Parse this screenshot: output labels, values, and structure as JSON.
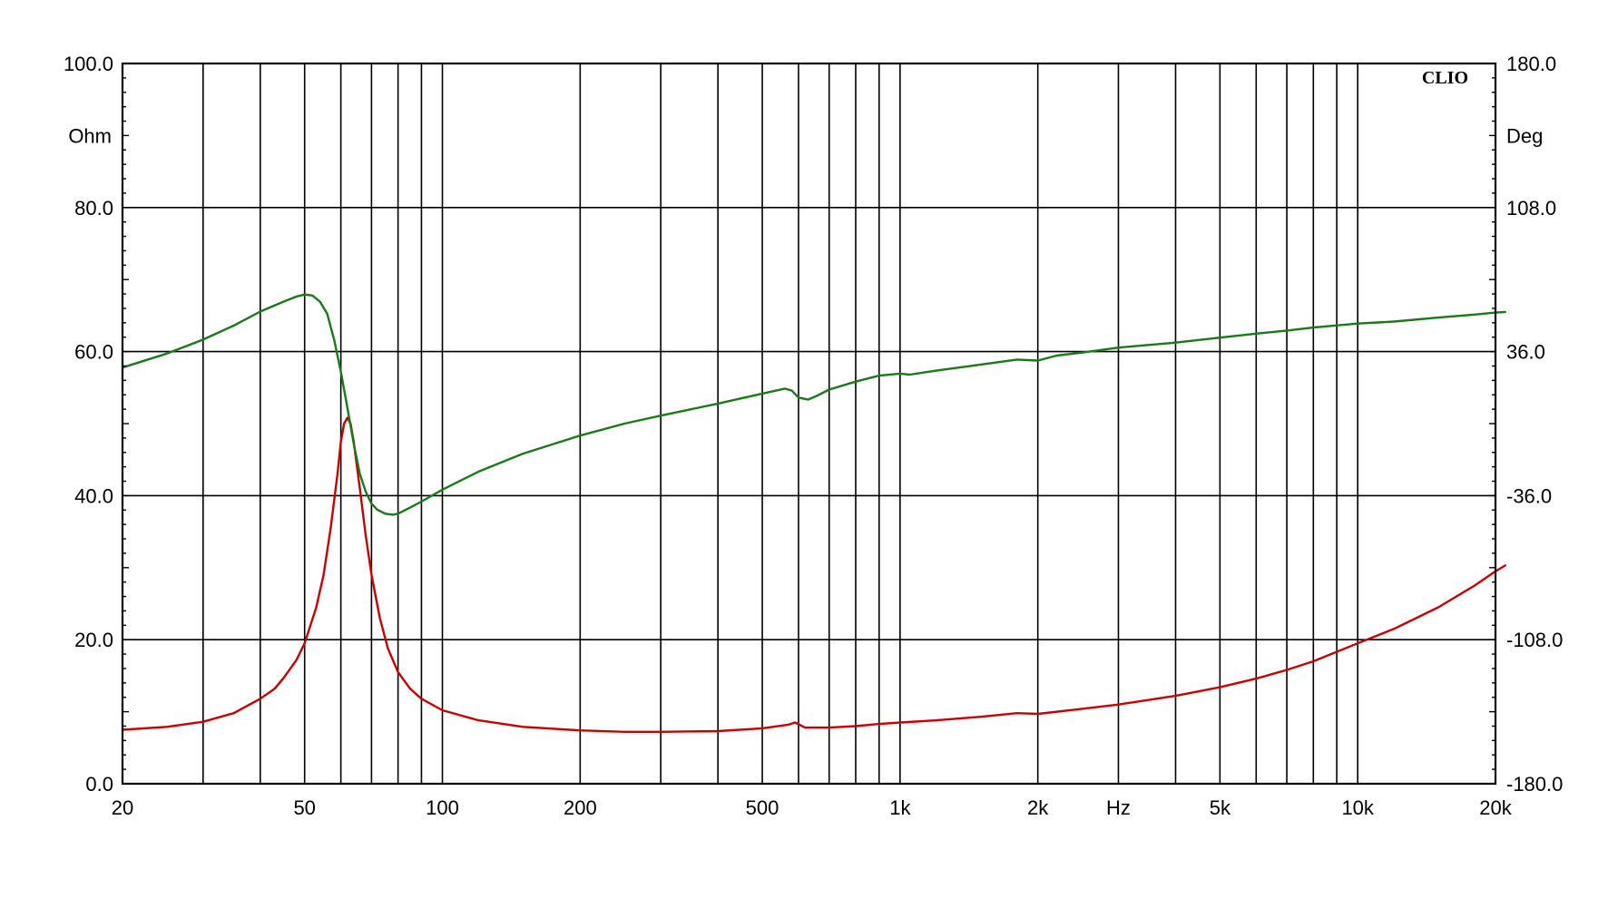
{
  "chart_data": {
    "type": "line",
    "brand_label": "CLIO",
    "x_unit_label": "Hz",
    "x_scale": "log",
    "xlim": [
      20,
      20000
    ],
    "x_tick_labels": [
      {
        "value": 20,
        "label": "20"
      },
      {
        "value": 50,
        "label": "50"
      },
      {
        "value": 100,
        "label": "100"
      },
      {
        "value": 200,
        "label": "200"
      },
      {
        "value": 500,
        "label": "500"
      },
      {
        "value": 1000,
        "label": "1k"
      },
      {
        "value": 2000,
        "label": "2k"
      },
      {
        "value": 5000,
        "label": "5k"
      },
      {
        "value": 10000,
        "label": "10k"
      },
      {
        "value": 20000,
        "label": "20k"
      }
    ],
    "x_gridlines": [
      30,
      40,
      50,
      60,
      70,
      80,
      90,
      100,
      200,
      300,
      400,
      500,
      600,
      700,
      800,
      900,
      1000,
      2000,
      3000,
      4000,
      5000,
      6000,
      7000,
      8000,
      9000,
      10000
    ],
    "y_left": {
      "unit_label": "Ohm",
      "ylim": [
        0,
        100
      ],
      "ticks": [
        {
          "value": 0,
          "label": "0.0"
        },
        {
          "value": 20,
          "label": "20.0"
        },
        {
          "value": 40,
          "label": "40.0"
        },
        {
          "value": 60,
          "label": "60.0"
        },
        {
          "value": 80,
          "label": "80.0"
        },
        {
          "value": 100,
          "label": "100.0"
        }
      ]
    },
    "y_right": {
      "unit_label": "Deg",
      "ylim": [
        -180,
        180
      ],
      "ticks": [
        {
          "value": -180,
          "label": "-180.0"
        },
        {
          "value": -108,
          "label": "-108.0"
        },
        {
          "value": -36,
          "label": "-36.0"
        },
        {
          "value": 36,
          "label": "36.0"
        },
        {
          "value": 108,
          "label": "108.0"
        },
        {
          "value": 180,
          "label": "180.0"
        }
      ]
    },
    "grid": true,
    "series": [
      {
        "axis": "left",
        "color": "#cc0000",
        "points": [
          [
            20,
            7.5
          ],
          [
            25,
            7.9
          ],
          [
            30,
            8.6
          ],
          [
            35,
            9.8
          ],
          [
            40,
            11.8
          ],
          [
            43,
            13.2
          ],
          [
            45,
            14.7
          ],
          [
            48,
            17.2
          ],
          [
            50,
            19.5
          ],
          [
            53,
            24.5
          ],
          [
            55,
            29.0
          ],
          [
            57,
            35.5
          ],
          [
            59,
            43.0
          ],
          [
            60,
            47.5
          ],
          [
            61,
            50.0
          ],
          [
            62,
            50.8
          ],
          [
            63,
            50.0
          ],
          [
            64,
            47.5
          ],
          [
            66,
            41.0
          ],
          [
            68,
            34.5
          ],
          [
            70,
            29.0
          ],
          [
            73,
            23.0
          ],
          [
            76,
            18.8
          ],
          [
            80,
            15.5
          ],
          [
            85,
            13.2
          ],
          [
            90,
            11.8
          ],
          [
            100,
            10.2
          ],
          [
            120,
            8.8
          ],
          [
            150,
            7.9
          ],
          [
            200,
            7.4
          ],
          [
            250,
            7.2
          ],
          [
            300,
            7.2
          ],
          [
            400,
            7.3
          ],
          [
            500,
            7.7
          ],
          [
            570,
            8.2
          ],
          [
            590,
            8.5
          ],
          [
            620,
            7.8
          ],
          [
            700,
            7.8
          ],
          [
            800,
            8.0
          ],
          [
            900,
            8.3
          ],
          [
            1000,
            8.5
          ],
          [
            1200,
            8.8
          ],
          [
            1500,
            9.3
          ],
          [
            1800,
            9.8
          ],
          [
            2000,
            9.7
          ],
          [
            2500,
            10.4
          ],
          [
            3000,
            11.0
          ],
          [
            4000,
            12.2
          ],
          [
            5000,
            13.4
          ],
          [
            6000,
            14.6
          ],
          [
            7000,
            15.8
          ],
          [
            8000,
            17.0
          ],
          [
            10000,
            19.5
          ],
          [
            12000,
            21.5
          ],
          [
            15000,
            24.5
          ],
          [
            18000,
            27.5
          ],
          [
            20000,
            29.5
          ],
          [
            21000,
            30.3
          ]
        ]
      },
      {
        "axis": "right",
        "color": "#1a7a1a",
        "points": [
          [
            20,
            28
          ],
          [
            25,
            35
          ],
          [
            30,
            42
          ],
          [
            35,
            49
          ],
          [
            40,
            56
          ],
          [
            45,
            61
          ],
          [
            48,
            63.5
          ],
          [
            50,
            64.5
          ],
          [
            52,
            64
          ],
          [
            54,
            61
          ],
          [
            56,
            55
          ],
          [
            58,
            42
          ],
          [
            60,
            26
          ],
          [
            62,
            8
          ],
          [
            64,
            -10
          ],
          [
            66,
            -25
          ],
          [
            68,
            -34
          ],
          [
            70,
            -40
          ],
          [
            72,
            -43
          ],
          [
            75,
            -45
          ],
          [
            78,
            -45.5
          ],
          [
            80,
            -45
          ],
          [
            85,
            -42
          ],
          [
            90,
            -39
          ],
          [
            100,
            -33
          ],
          [
            120,
            -24
          ],
          [
            150,
            -15
          ],
          [
            200,
            -6
          ],
          [
            250,
            0
          ],
          [
            300,
            4
          ],
          [
            400,
            10
          ],
          [
            500,
            15
          ],
          [
            560,
            17.5
          ],
          [
            580,
            16.5
          ],
          [
            600,
            13
          ],
          [
            630,
            12
          ],
          [
            660,
            14
          ],
          [
            700,
            17
          ],
          [
            800,
            21
          ],
          [
            900,
            24
          ],
          [
            1000,
            25
          ],
          [
            1050,
            24.5
          ],
          [
            1200,
            26.5
          ],
          [
            1500,
            29.5
          ],
          [
            1800,
            32
          ],
          [
            2000,
            31.5
          ],
          [
            2200,
            34
          ],
          [
            2500,
            35.5
          ],
          [
            3000,
            38
          ],
          [
            4000,
            40.5
          ],
          [
            5000,
            43
          ],
          [
            6000,
            45
          ],
          [
            7000,
            46.5
          ],
          [
            8000,
            48
          ],
          [
            10000,
            50
          ],
          [
            12000,
            51
          ],
          [
            15000,
            53
          ],
          [
            18000,
            54.5
          ],
          [
            20000,
            55.5
          ],
          [
            21000,
            55.8
          ]
        ]
      }
    ]
  }
}
